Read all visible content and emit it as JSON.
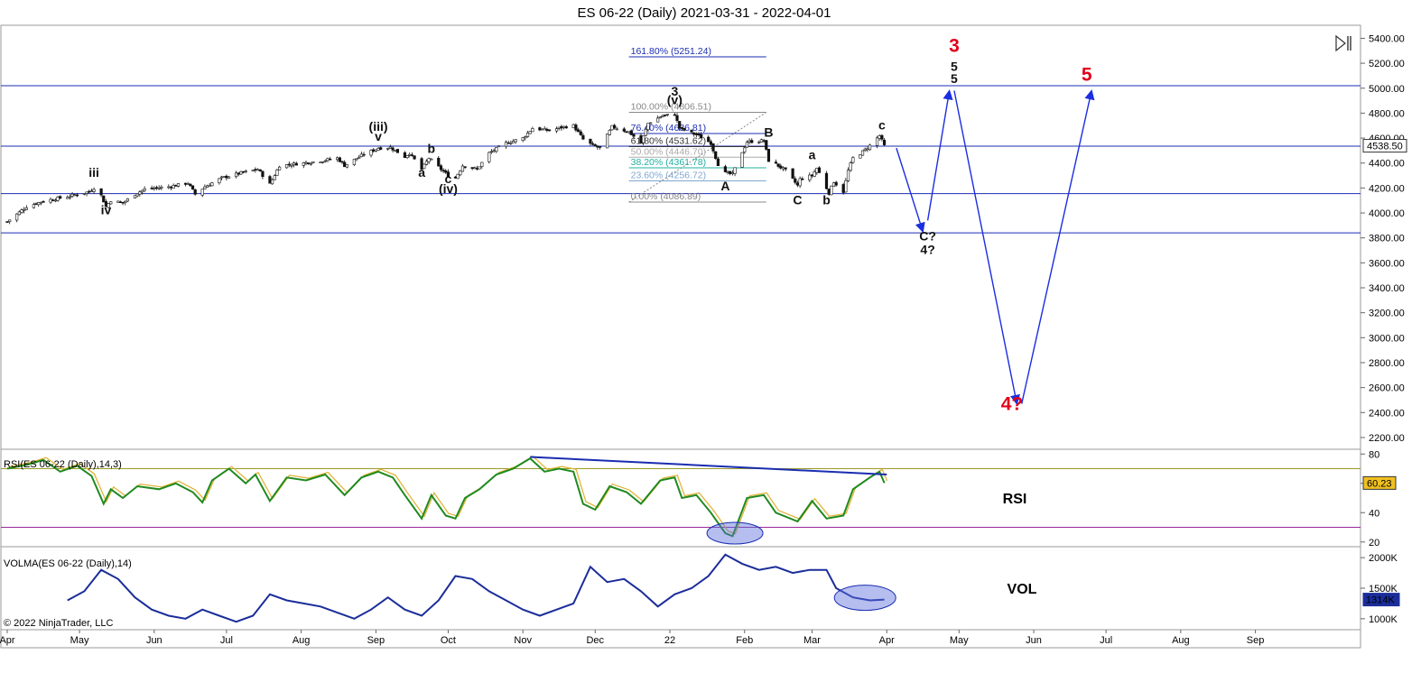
{
  "chart_data": {
    "type": "candlestick",
    "title": "ES 06-22 (Daily)  2021-03-31 - 2022-04-01",
    "copyright": "© 2022 NinjaTrader, LLC",
    "x_axis": {
      "labels": [
        "Apr",
        "May",
        "Jun",
        "Jul",
        "Aug",
        "Sep",
        "Oct",
        "Nov",
        "Dec",
        "22",
        "Feb",
        "Mar",
        "Apr",
        "May",
        "Jun",
        "Jul",
        "Aug",
        "Sep"
      ],
      "start": "2021-04-01",
      "end": "2022-09-30"
    },
    "price_panel": {
      "y_ticks": [
        2200,
        2400,
        2600,
        2800,
        3000,
        3200,
        3400,
        3600,
        3800,
        4000,
        4200,
        4400,
        4600,
        4800,
        5000,
        5200,
        5400
      ],
      "y_tick_labels": [
        "2200.00",
        "2400.00",
        "2600.00",
        "2800.00",
        "3000.00",
        "3200.00",
        "3400.00",
        "3600.00",
        "3800.00",
        "4000.00",
        "4200.00",
        "4400.00",
        "4600.00",
        "4800.00",
        "5000.00",
        "5200.00",
        "5400.00"
      ],
      "ylim": [
        2120,
        5490
      ],
      "last_price": "4538.50",
      "horizontal_lines": [
        5020,
        4535,
        4155,
        3840
      ],
      "close_points": [
        [
          "2021-04-01",
          3930
        ],
        [
          "2021-04-05",
          3990
        ],
        [
          "2021-04-09",
          4050
        ],
        [
          "2021-04-15",
          4090
        ],
        [
          "2021-04-20",
          4110
        ],
        [
          "2021-04-26",
          4130
        ],
        [
          "2021-04-30",
          4150
        ],
        [
          "2021-05-05",
          4170
        ],
        [
          "2021-05-07",
          4200
        ],
        [
          "2021-05-10",
          4140
        ],
        [
          "2021-05-12",
          4050
        ],
        [
          "2021-05-14",
          4100
        ],
        [
          "2021-05-19",
          4080
        ],
        [
          "2021-05-24",
          4150
        ],
        [
          "2021-05-28",
          4190
        ],
        [
          "2021-06-07",
          4210
        ],
        [
          "2021-06-15",
          4240
        ],
        [
          "2021-06-18",
          4150
        ],
        [
          "2021-06-22",
          4210
        ],
        [
          "2021-06-29",
          4280
        ],
        [
          "2021-07-07",
          4320
        ],
        [
          "2021-07-14",
          4350
        ],
        [
          "2021-07-19",
          4230
        ],
        [
          "2021-07-23",
          4380
        ],
        [
          "2021-08-02",
          4400
        ],
        [
          "2021-08-10",
          4420
        ],
        [
          "2021-08-16",
          4440
        ],
        [
          "2021-08-19",
          4380
        ],
        [
          "2021-08-26",
          4460
        ],
        [
          "2021-09-02",
          4520
        ],
        [
          "2021-09-07",
          4525
        ],
        [
          "2021-09-13",
          4450
        ],
        [
          "2021-09-15",
          4480
        ],
        [
          "2021-09-20",
          4350
        ],
        [
          "2021-09-23",
          4440
        ],
        [
          "2021-09-28",
          4350
        ],
        [
          "2021-10-01",
          4300
        ],
        [
          "2021-10-04",
          4280
        ],
        [
          "2021-10-07",
          4380
        ],
        [
          "2021-10-13",
          4350
        ],
        [
          "2021-10-18",
          4480
        ],
        [
          "2021-10-25",
          4560
        ],
        [
          "2021-11-01",
          4600
        ],
        [
          "2021-11-05",
          4680
        ],
        [
          "2021-11-12",
          4660
        ],
        [
          "2021-11-18",
          4690
        ],
        [
          "2021-11-22",
          4700
        ],
        [
          "2021-11-26",
          4590
        ],
        [
          "2021-11-30",
          4540
        ],
        [
          "2021-12-03",
          4520
        ],
        [
          "2021-12-08",
          4690
        ],
        [
          "2021-12-15",
          4650
        ],
        [
          "2021-12-20",
          4560
        ],
        [
          "2021-12-23",
          4720
        ],
        [
          "2021-12-29",
          4780
        ],
        [
          "2022-01-03",
          4790
        ],
        [
          "2022-01-05",
          4680
        ],
        [
          "2022-01-10",
          4640
        ],
        [
          "2022-01-13",
          4620
        ],
        [
          "2022-01-18",
          4560
        ],
        [
          "2022-01-21",
          4390
        ],
        [
          "2022-01-24",
          4320
        ],
        [
          "2022-01-27",
          4310
        ],
        [
          "2022-01-31",
          4490
        ],
        [
          "2022-02-02",
          4570
        ],
        [
          "2022-02-09",
          4580
        ],
        [
          "2022-02-11",
          4420
        ],
        [
          "2022-02-14",
          4390
        ],
        [
          "2022-02-18",
          4340
        ],
        [
          "2022-02-23",
          4220
        ],
        [
          "2022-02-24",
          4270
        ],
        [
          "2022-03-01",
          4300
        ],
        [
          "2022-03-03",
          4360
        ],
        [
          "2022-03-07",
          4200
        ],
        [
          "2022-03-08",
          4160
        ],
        [
          "2022-03-10",
          4250
        ],
        [
          "2022-03-14",
          4170
        ],
        [
          "2022-03-16",
          4340
        ],
        [
          "2022-03-18",
          4440
        ],
        [
          "2022-03-22",
          4490
        ],
        [
          "2022-03-25",
          4540
        ],
        [
          "2022-03-29",
          4620
        ],
        [
          "2022-03-31",
          4538.5
        ]
      ],
      "wave_labels": [
        {
          "text": "iii",
          "date": "2021-05-07",
          "price": 4290,
          "color": "#111111"
        },
        {
          "text": "iv",
          "date": "2021-05-12",
          "price": 3990,
          "color": "#111111"
        },
        {
          "text": "(iii)",
          "date": "2021-09-02",
          "price": 4660,
          "color": "#111111"
        },
        {
          "text": "v",
          "date": "2021-09-02",
          "price": 4580,
          "color": "#111111"
        },
        {
          "text": "a",
          "date": "2021-09-20",
          "price": 4290,
          "color": "#111111"
        },
        {
          "text": "b",
          "date": "2021-09-24",
          "price": 4480,
          "color": "#111111"
        },
        {
          "text": "c",
          "date": "2021-10-01",
          "price": 4240,
          "color": "#111111"
        },
        {
          "text": "(iv)",
          "date": "2021-10-01",
          "price": 4160,
          "color": "#111111"
        },
        {
          "text": "3",
          "date": "2022-01-03",
          "price": 4940,
          "color": "#111111"
        },
        {
          "text": "(v)",
          "date": "2022-01-03",
          "price": 4870,
          "color": "#111111"
        },
        {
          "text": "A",
          "date": "2022-01-24",
          "price": 4180,
          "color": "#111111"
        },
        {
          "text": "B",
          "date": "2022-02-11",
          "price": 4610,
          "color": "#111111"
        },
        {
          "text": "C",
          "date": "2022-02-23",
          "price": 4070,
          "color": "#111111"
        },
        {
          "text": "a",
          "date": "2022-03-01",
          "price": 4430,
          "color": "#111111"
        },
        {
          "text": "b",
          "date": "2022-03-07",
          "price": 4070,
          "color": "#111111"
        },
        {
          "text": "c",
          "date": "2022-03-30",
          "price": 4670,
          "color": "#111111"
        },
        {
          "text": "C?",
          "date": "2022-04-18",
          "price": 3780,
          "color": "#111111"
        },
        {
          "text": "4?",
          "date": "2022-04-18",
          "price": 3670,
          "color": "#111111"
        },
        {
          "text": "5",
          "date": "2022-04-29",
          "price": 5040,
          "color": "#111111"
        },
        {
          "text": "5",
          "date": "2022-04-29",
          "price": 5140,
          "color": "#1b2de0"
        }
      ],
      "big_labels": [
        {
          "text": "3",
          "date": "2022-04-29",
          "price": 5290,
          "color": "#e0001b"
        },
        {
          "text": "5",
          "date": "2022-06-23",
          "price": 5060,
          "color": "#e0001b"
        },
        {
          "text": "4?",
          "date": "2022-05-23",
          "price": 2420,
          "color": "#e0001b"
        }
      ],
      "arrows": [
        {
          "from": [
            "2022-04-05",
            4520
          ],
          "to": [
            "2022-04-16",
            3850
          ]
        },
        {
          "from": [
            "2022-04-18",
            3940
          ],
          "to": [
            "2022-04-27",
            4980
          ]
        },
        {
          "from": [
            "2022-04-29",
            4980
          ],
          "to": [
            "2022-05-25",
            2470
          ]
        },
        {
          "from": [
            "2022-05-27",
            2470
          ],
          "to": [
            "2022-06-25",
            4980
          ]
        }
      ],
      "fibonacci": {
        "start_date": "2021-12-15",
        "end_date": "2022-02-10",
        "levels": [
          {
            "label": "161.80% (5251.24)",
            "price": 5251.24,
            "color": "#1b2db0"
          },
          {
            "label": "100.00% (4806.51)",
            "price": 4806.51,
            "color": "#888888"
          },
          {
            "label": "76.40% (4636.81)",
            "price": 4636.81,
            "color": "#1b2db0"
          },
          {
            "label": "61.80% (4531.62)",
            "price": 4531.62,
            "color": "#333333"
          },
          {
            "label": "50.00% (4446.70)",
            "price": 4446.7,
            "color": "#aaaaaa"
          },
          {
            "label": "38.20% (4361.78)",
            "price": 4361.78,
            "color": "#20b0a0"
          },
          {
            "label": "23.60% (4256.72)",
            "price": 4256.72,
            "color": "#80a8d0"
          },
          {
            "label": "0.00% (4086.89)",
            "price": 4086.89,
            "color": "#888888"
          }
        ]
      }
    },
    "rsi_panel": {
      "label": "RSI(ES 06-22 (Daily),14,3)",
      "annotation": "RSI",
      "y_ticks": [
        20,
        40,
        60,
        80
      ],
      "ylim": [
        18,
        82
      ],
      "overbought": 70,
      "oversold": 30,
      "last_value": "60.23",
      "values": [
        [
          "2021-04-01",
          70
        ],
        [
          "2021-04-10",
          73
        ],
        [
          "2021-04-16",
          76
        ],
        [
          "2021-04-23",
          68
        ],
        [
          "2021-04-30",
          72
        ],
        [
          "2021-05-06",
          65
        ],
        [
          "2021-05-11",
          46
        ],
        [
          "2021-05-14",
          56
        ],
        [
          "2021-05-19",
          50
        ],
        [
          "2021-05-25",
          58
        ],
        [
          "2021-06-03",
          56
        ],
        [
          "2021-06-10",
          60
        ],
        [
          "2021-06-17",
          54
        ],
        [
          "2021-06-21",
          47
        ],
        [
          "2021-06-25",
          62
        ],
        [
          "2021-07-02",
          70
        ],
        [
          "2021-07-09",
          60
        ],
        [
          "2021-07-13",
          66
        ],
        [
          "2021-07-19",
          48
        ],
        [
          "2021-07-26",
          64
        ],
        [
          "2021-08-03",
          62
        ],
        [
          "2021-08-11",
          66
        ],
        [
          "2021-08-19",
          52
        ],
        [
          "2021-08-26",
          64
        ],
        [
          "2021-09-02",
          68
        ],
        [
          "2021-09-08",
          64
        ],
        [
          "2021-09-13",
          52
        ],
        [
          "2021-09-20",
          36
        ],
        [
          "2021-09-24",
          52
        ],
        [
          "2021-09-30",
          38
        ],
        [
          "2021-10-04",
          36
        ],
        [
          "2021-10-08",
          50
        ],
        [
          "2021-10-14",
          56
        ],
        [
          "2021-10-21",
          66
        ],
        [
          "2021-10-28",
          70
        ],
        [
          "2021-11-04",
          77
        ],
        [
          "2021-11-10",
          68
        ],
        [
          "2021-11-16",
          70
        ],
        [
          "2021-11-22",
          68
        ],
        [
          "2021-11-26",
          46
        ],
        [
          "2021-12-01",
          42
        ],
        [
          "2021-12-07",
          58
        ],
        [
          "2021-12-14",
          54
        ],
        [
          "2021-12-20",
          46
        ],
        [
          "2021-12-28",
          62
        ],
        [
          "2022-01-03",
          64
        ],
        [
          "2022-01-06",
          50
        ],
        [
          "2022-01-12",
          52
        ],
        [
          "2022-01-18",
          40
        ],
        [
          "2022-01-24",
          26
        ],
        [
          "2022-01-27",
          24
        ],
        [
          "2022-02-02",
          50
        ],
        [
          "2022-02-09",
          52
        ],
        [
          "2022-02-14",
          40
        ],
        [
          "2022-02-23",
          34
        ],
        [
          "2022-03-01",
          48
        ],
        [
          "2022-03-07",
          36
        ],
        [
          "2022-03-14",
          38
        ],
        [
          "2022-03-18",
          56
        ],
        [
          "2022-03-25",
          64
        ],
        [
          "2022-03-29",
          68
        ],
        [
          "2022-03-31",
          60.23
        ]
      ],
      "trendline": [
        [
          "2021-11-04",
          78
        ],
        [
          "2022-04-01",
          66
        ]
      ],
      "ellipse": {
        "date": "2022-01-28",
        "value": 26
      }
    },
    "vol_panel": {
      "label": "VOLMA(ES 06-22 (Daily),14)",
      "annotation": "VOL",
      "y_ticks": [
        "1000K",
        "1500K",
        "2000K"
      ],
      "y_values": [
        1000,
        1500,
        2000
      ],
      "ylim": [
        850,
        2150
      ],
      "last_value": "1314K",
      "values": [
        [
          "2021-04-26",
          1300
        ],
        [
          "2021-05-03",
          1450
        ],
        [
          "2021-05-10",
          1800
        ],
        [
          "2021-05-17",
          1650
        ],
        [
          "2021-05-24",
          1350
        ],
        [
          "2021-05-31",
          1150
        ],
        [
          "2021-06-07",
          1050
        ],
        [
          "2021-06-14",
          1000
        ],
        [
          "2021-06-21",
          1150
        ],
        [
          "2021-06-28",
          1050
        ],
        [
          "2021-07-05",
          950
        ],
        [
          "2021-07-12",
          1050
        ],
        [
          "2021-07-19",
          1400
        ],
        [
          "2021-07-26",
          1300
        ],
        [
          "2021-08-02",
          1250
        ],
        [
          "2021-08-09",
          1200
        ],
        [
          "2021-08-16",
          1100
        ],
        [
          "2021-08-23",
          1000
        ],
        [
          "2021-08-30",
          1150
        ],
        [
          "2021-09-06",
          1350
        ],
        [
          "2021-09-13",
          1150
        ],
        [
          "2021-09-20",
          1050
        ],
        [
          "2021-09-27",
          1300
        ],
        [
          "2021-10-04",
          1700
        ],
        [
          "2021-10-11",
          1650
        ],
        [
          "2021-10-18",
          1450
        ],
        [
          "2021-10-25",
          1300
        ],
        [
          "2021-11-01",
          1150
        ],
        [
          "2021-11-08",
          1050
        ],
        [
          "2021-11-15",
          1150
        ],
        [
          "2021-11-22",
          1250
        ],
        [
          "2021-11-29",
          1850
        ],
        [
          "2021-12-06",
          1600
        ],
        [
          "2021-12-13",
          1650
        ],
        [
          "2021-12-20",
          1450
        ],
        [
          "2021-12-27",
          1200
        ],
        [
          "2022-01-03",
          1400
        ],
        [
          "2022-01-10",
          1500
        ],
        [
          "2022-01-17",
          1700
        ],
        [
          "2022-01-24",
          2050
        ],
        [
          "2022-01-31",
          1900
        ],
        [
          "2022-02-07",
          1800
        ],
        [
          "2022-02-14",
          1850
        ],
        [
          "2022-02-21",
          1750
        ],
        [
          "2022-02-28",
          1800
        ],
        [
          "2022-03-07",
          1800
        ],
        [
          "2022-03-11",
          1500
        ],
        [
          "2022-03-18",
          1350
        ],
        [
          "2022-03-25",
          1300
        ],
        [
          "2022-03-31",
          1314
        ]
      ],
      "ellipse": {
        "date": "2022-03-23",
        "value": 1314
      }
    }
  }
}
